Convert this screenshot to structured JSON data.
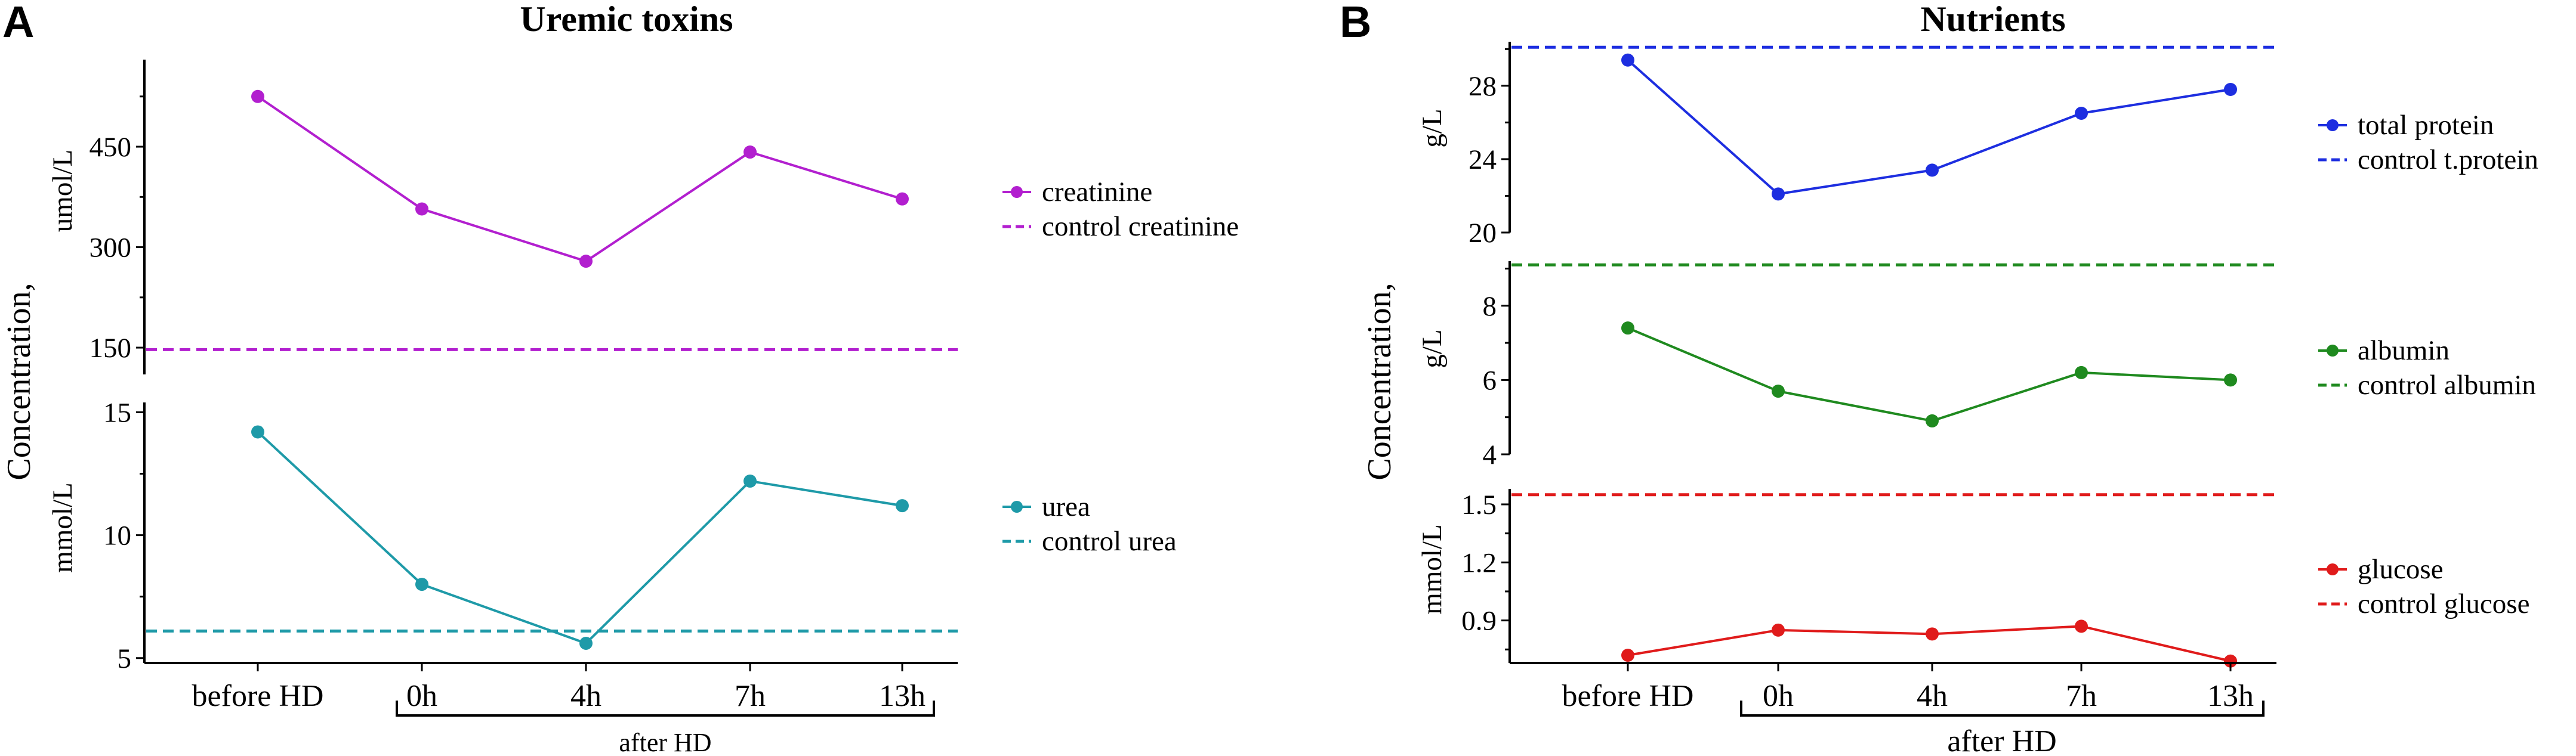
{
  "figure": {
    "panels": [
      {
        "letter": "A",
        "title": "Uremic toxins",
        "ylabel_shared": "Concentration,",
        "after_label": "after HD"
      },
      {
        "letter": "B",
        "title": "Nutrients",
        "ylabel_shared": "Concentration,",
        "after_label": "after HD"
      }
    ]
  },
  "chart_data": [
    {
      "type": "line",
      "panel": "A",
      "title": "Uremic toxins",
      "categories": [
        "before HD",
        "0h",
        "4h",
        "7h",
        "13h"
      ],
      "ylabel": "umol/L",
      "ylim": [
        110,
        580
      ],
      "yticks": [
        150,
        300,
        450
      ],
      "series": [
        {
          "name": "creatinine",
          "values": [
            525,
            357,
            279,
            442,
            372
          ],
          "color": "#b21fcf"
        }
      ],
      "control": {
        "name": "control creatinine",
        "value": 147,
        "color": "#b21fcf"
      }
    },
    {
      "type": "line",
      "panel": "A",
      "categories": [
        "before HD",
        "0h",
        "4h",
        "7h",
        "13h"
      ],
      "ylabel": "mmol/L",
      "ylim": [
        4.8,
        15.4
      ],
      "yticks": [
        5,
        10,
        15
      ],
      "series": [
        {
          "name": "urea",
          "values": [
            14.2,
            8.0,
            5.6,
            12.2,
            11.2
          ],
          "color": "#1e9aa8"
        }
      ],
      "control": {
        "name": "control urea",
        "value": 6.1,
        "color": "#1e9aa8"
      }
    },
    {
      "type": "line",
      "panel": "B",
      "title": "Nutrients",
      "categories": [
        "before HD",
        "0h",
        "4h",
        "7h",
        "13h"
      ],
      "ylabel": "g/L",
      "ylim": [
        20,
        30.4
      ],
      "yticks": [
        20,
        24,
        28
      ],
      "series": [
        {
          "name": "total protein",
          "values": [
            29.4,
            22.1,
            23.4,
            26.5,
            27.8
          ],
          "color": "#1d2ee0"
        }
      ],
      "control": {
        "name": "control t.protein",
        "value": 30.1,
        "color": "#1d2ee0"
      }
    },
    {
      "type": "line",
      "panel": "B",
      "categories": [
        "before HD",
        "0h",
        "4h",
        "7h",
        "13h"
      ],
      "ylabel": "g/L",
      "ylim": [
        4,
        9.2
      ],
      "yticks": [
        4,
        6,
        8
      ],
      "series": [
        {
          "name": "albumin",
          "values": [
            7.4,
            5.7,
            4.9,
            6.2,
            6.0
          ],
          "color": "#1f8a1f"
        }
      ],
      "control": {
        "name": "control albumin",
        "value": 9.1,
        "color": "#1f8a1f"
      }
    },
    {
      "type": "line",
      "panel": "B",
      "categories": [
        "before HD",
        "0h",
        "4h",
        "7h",
        "13h"
      ],
      "ylabel": "mmol/L",
      "ylim": [
        0.68,
        1.58
      ],
      "yticks": [
        0.9,
        1.2,
        1.5
      ],
      "series": [
        {
          "name": "glucose",
          "values": [
            0.72,
            0.85,
            0.83,
            0.87,
            0.69
          ],
          "color": "#e01b1b"
        }
      ],
      "control": {
        "name": "control glucose",
        "value": 1.55,
        "color": "#e01b1b"
      }
    }
  ]
}
